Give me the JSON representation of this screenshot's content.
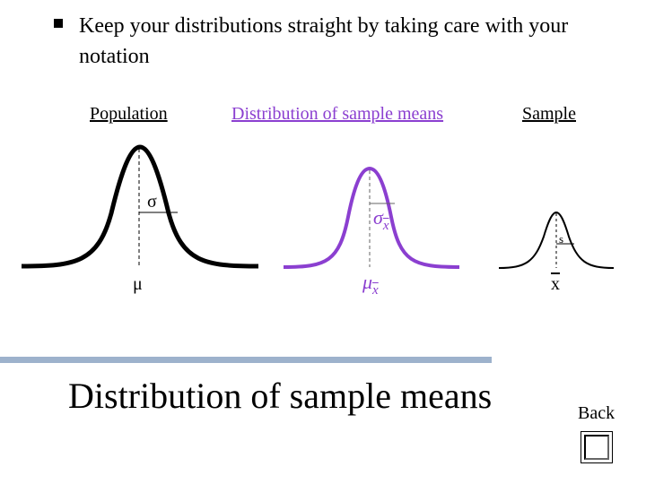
{
  "bullet": {
    "text": "Keep your distributions straight by taking care with your notation"
  },
  "labels": {
    "population": "Population",
    "sampling": "Distribution of sample means",
    "sample": "Sample"
  },
  "symbols": {
    "sigma": "σ",
    "mu": "μ",
    "sigma_xbar": "σ",
    "sigma_xbar_sub": "x",
    "mu_xbar": "μ",
    "mu_xbar_sub": "x",
    "s": "s",
    "xbar": "x"
  },
  "colors": {
    "population_curve": "#000000",
    "sampling_curve": "#8b3fd0",
    "sample_curve": "#000000",
    "sampling_label": "#8b3fd0",
    "divider": "#9db2cc"
  },
  "footer": {
    "title": "Distribution of sample means",
    "back_label": "Back"
  },
  "icons": {
    "back": "square-button-icon"
  }
}
